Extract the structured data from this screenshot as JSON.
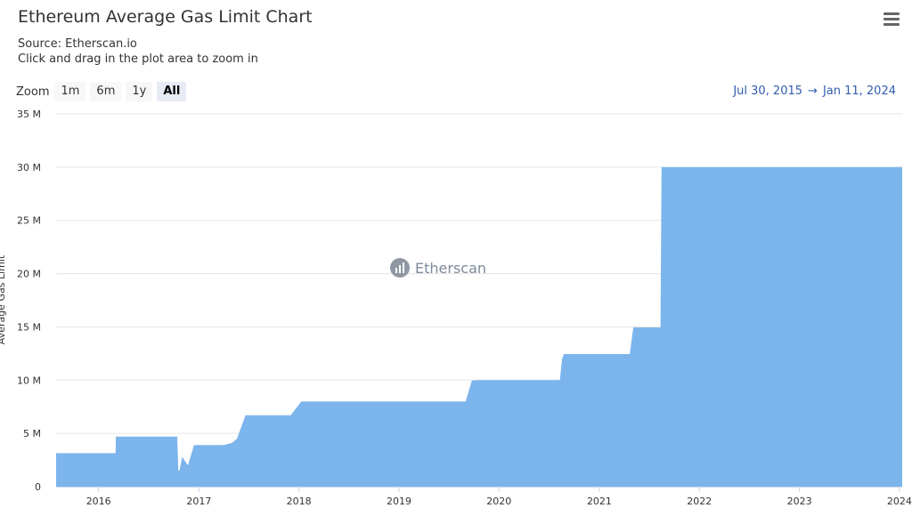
{
  "header": {
    "title": "Ethereum Average Gas Limit Chart",
    "source": "Source: Etherscan.io",
    "hint": "Click and drag in the plot area to zoom in"
  },
  "zoom": {
    "label": "Zoom",
    "buttons": [
      {
        "label": "1m",
        "active": false
      },
      {
        "label": "6m",
        "active": false
      },
      {
        "label": "1y",
        "active": false
      },
      {
        "label": "All",
        "active": true
      }
    ]
  },
  "range": {
    "from": "Jul 30, 2015",
    "arrow": "→",
    "to": "Jan 11, 2024"
  },
  "watermark": "Etherscan",
  "colors": {
    "fill": "#7cb5ec",
    "grid": "#e6e6e6",
    "axis": "#ccd6eb",
    "link": "#335cad"
  },
  "chart_data": {
    "type": "area",
    "title": "Ethereum Average Gas Limit Chart",
    "ylabel": "Average Gas Limit",
    "ylim": [
      0,
      35000000
    ],
    "xlim": [
      "2015-07-30",
      "2024-01-11"
    ],
    "ytick_labels": [
      "0",
      "5 M",
      "10 M",
      "15 M",
      "20 M",
      "25 M",
      "30 M",
      "35 M"
    ],
    "xtick_labels": [
      "2016",
      "2017",
      "2018",
      "2019",
      "2020",
      "2021",
      "2022",
      "2023",
      "2024"
    ],
    "grid": true,
    "legend": "none",
    "series": [
      {
        "x": [
          "2015-07-30",
          "2016-03-03",
          "2016-03-04",
          "2016-07-29",
          "2016-07-30",
          "2016-10-14",
          "2016-10-18",
          "2016-10-22",
          "2016-11-01",
          "2016-11-22",
          "2016-12-14",
          "2017-04-01",
          "2017-05-01",
          "2017-05-20",
          "2017-06-20",
          "2017-12-02",
          "2018-01-10",
          "2019-09-01",
          "2019-09-24",
          "2019-10-15",
          "2020-08-10",
          "2020-08-18",
          "2020-08-25",
          "2021-04-22",
          "2021-05-05",
          "2021-08-12",
          "2021-08-16",
          "2024-01-11"
        ],
        "y": [
          3140000,
          3140000,
          4700000,
          4700000,
          4700000,
          4700000,
          1500000,
          1500000,
          2800000,
          2000000,
          3900000,
          3900000,
          4100000,
          4500000,
          6700000,
          6700000,
          8000000,
          8000000,
          9950000,
          10000000,
          10000000,
          12000000,
          12450000,
          12450000,
          14950000,
          14950000,
          30000000,
          30000000
        ]
      }
    ]
  }
}
